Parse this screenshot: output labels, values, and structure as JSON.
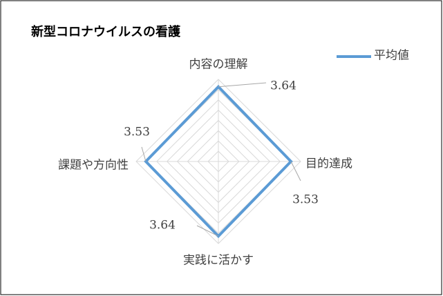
{
  "chart_data": {
    "type": "radar",
    "title": "新型コロナウイルスの看護",
    "categories": [
      "内容の理解",
      "目的達成",
      "実践に活かす",
      "課題や方向性"
    ],
    "series": [
      {
        "name": "平均値",
        "color": "#5b9bd5",
        "values": [
          3.64,
          3.53,
          3.64,
          3.53
        ]
      }
    ],
    "ylim": [
      0,
      4
    ],
    "yticks": [
      0,
      0.5,
      1,
      1.5,
      2,
      2.5,
      3,
      3.5,
      4
    ],
    "grid": true,
    "legend": "top-right"
  }
}
